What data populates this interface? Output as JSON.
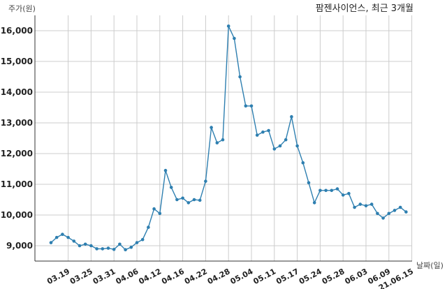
{
  "chart_data": {
    "type": "line",
    "title": "팜젠사이언스, 최근 3개월",
    "ylabel": "주가(원)",
    "xlabel": "날짜(일)",
    "ylim": [
      8500,
      16500
    ],
    "yticks": [
      9000,
      10000,
      11000,
      12000,
      13000,
      14000,
      15000,
      16000
    ],
    "ytick_labels": [
      "9,000",
      "10,000",
      "11,000",
      "12,000",
      "13,000",
      "14,000",
      "15,000",
      "16,000"
    ],
    "xtick_labels": [
      "03.19",
      "03.25",
      "03.31",
      "04.06",
      "04.12",
      "04.16",
      "04.22",
      "04.28",
      "05.04",
      "05.11",
      "05.17",
      "05.24",
      "05.28",
      "06.03",
      "06.09",
      "21.06.15"
    ],
    "xtick_index": [
      3,
      7,
      11,
      15,
      19,
      23,
      27,
      31,
      35,
      39,
      43,
      47,
      51,
      55,
      59,
      63
    ],
    "grid": true,
    "color": "#2e7fb0",
    "values": [
      9100,
      9270,
      9370,
      9270,
      9150,
      9000,
      9050,
      9000,
      8900,
      8900,
      8920,
      8880,
      9050,
      8870,
      8950,
      9100,
      9200,
      9600,
      10200,
      10050,
      11450,
      10900,
      10500,
      10550,
      10400,
      10500,
      10480,
      11100,
      12850,
      12350,
      12450,
      16150,
      15750,
      14500,
      13550,
      13550,
      12600,
      12700,
      12750,
      12150,
      12250,
      12450,
      13200,
      12250,
      11700,
      11050,
      10400,
      10800,
      10800,
      10800,
      10850,
      10650,
      10700,
      10250,
      10350,
      10300,
      10350,
      10050,
      9900,
      10050,
      10150,
      10250,
      10100
    ]
  }
}
